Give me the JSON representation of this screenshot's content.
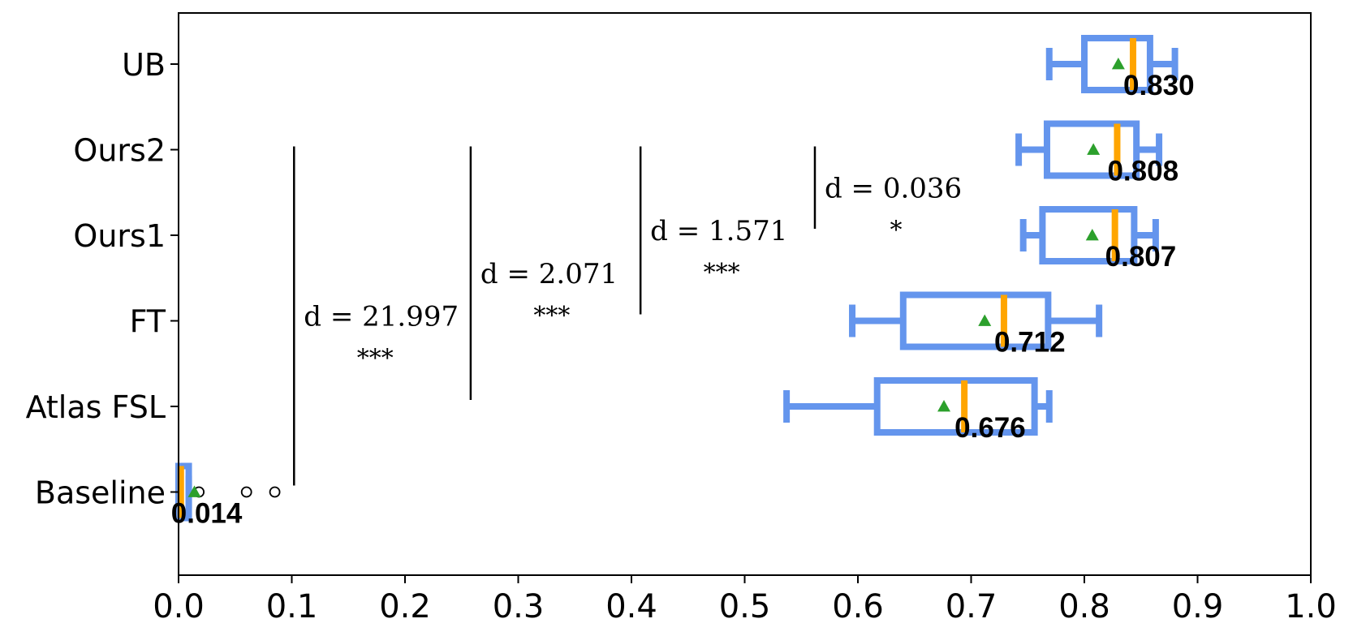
{
  "chart_data": {
    "type": "boxplot-horizontal",
    "categories": [
      "Baseline",
      "Atlas FSL",
      "FT",
      "Ours1",
      "Ours2",
      "UB"
    ],
    "xlim": [
      0.0,
      1.0
    ],
    "xticks": [
      "0.0",
      "0.1",
      "0.2",
      "0.3",
      "0.4",
      "0.5",
      "0.6",
      "0.7",
      "0.8",
      "0.9",
      "1.0"
    ],
    "boxes": [
      {
        "category": "Baseline",
        "whisker_low": 0.0,
        "q1": 0.0,
        "median": 0.002,
        "q3": 0.009,
        "whisker_high": 0.009,
        "mean": 0.014,
        "outliers": [
          0.018,
          0.06,
          0.085
        ],
        "median_label": "0.014"
      },
      {
        "category": "Atlas FSL",
        "whisker_low": 0.537,
        "q1": 0.617,
        "median": 0.694,
        "q3": 0.756,
        "whisker_high": 0.769,
        "mean": 0.676,
        "outliers": [],
        "median_label": "0.676"
      },
      {
        "category": "FT",
        "whisker_low": 0.595,
        "q1": 0.64,
        "median": 0.729,
        "q3": 0.768,
        "whisker_high": 0.813,
        "mean": 0.712,
        "outliers": [],
        "median_label": "0.712"
      },
      {
        "category": "Ours1",
        "whisker_low": 0.746,
        "q1": 0.763,
        "median": 0.827,
        "q3": 0.844,
        "whisker_high": 0.863,
        "mean": 0.807,
        "outliers": [],
        "median_label": "0.807"
      },
      {
        "category": "Ours2",
        "whisker_low": 0.742,
        "q1": 0.767,
        "median": 0.829,
        "q3": 0.846,
        "whisker_high": 0.866,
        "mean": 0.808,
        "outliers": [],
        "median_label": "0.808"
      },
      {
        "category": "UB",
        "whisker_low": 0.769,
        "q1": 0.8,
        "median": 0.843,
        "q3": 0.858,
        "whisker_high": 0.88,
        "mean": 0.83,
        "outliers": [],
        "median_label": "0.830"
      }
    ],
    "significance": [
      {
        "x": 0.102,
        "from": "Baseline",
        "to": "Ours2",
        "d_text": "d = 21.997",
        "stars": "***"
      },
      {
        "x": 0.258,
        "from": "Atlas FSL",
        "to": "Ours2",
        "d_text": "d = 2.071",
        "stars": "***"
      },
      {
        "x": 0.408,
        "from": "FT",
        "to": "Ours2",
        "d_text": "d = 1.571",
        "stars": "***"
      },
      {
        "x": 0.562,
        "from": "Ours1",
        "to": "Ours2",
        "d_text": "d = 0.036",
        "stars": "*"
      }
    ],
    "colors": {
      "box": "#6495ed",
      "median": "#ffa500",
      "mean": "#2ca02c",
      "axis": "#000000"
    },
    "grid": false,
    "legend": "none"
  }
}
